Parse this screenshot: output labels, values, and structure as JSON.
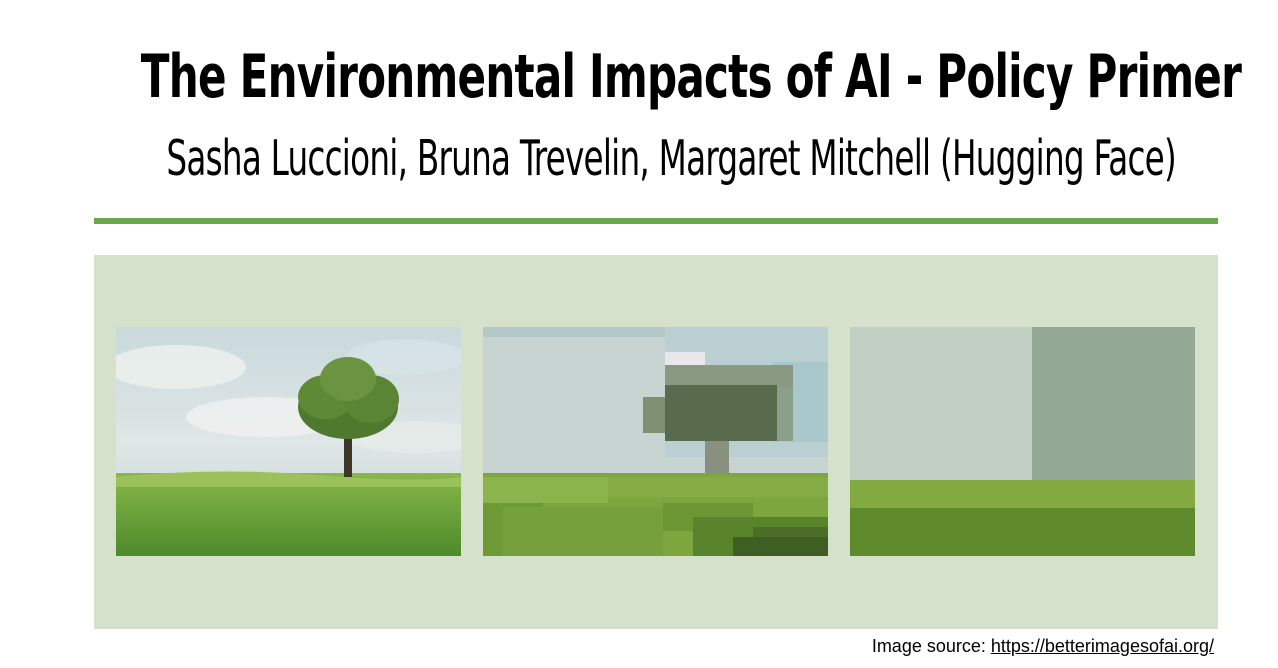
{
  "slide": {
    "title": "The Environmental Impacts of AI - Policy Primer",
    "authors": "Sasha Luccioni, Bruna Trevelin, Margaret Mitchell (Hugging Face)",
    "accent_color": "#6aa84f",
    "panel_color": "#d5e1ca"
  },
  "image": {
    "frames": [
      {
        "name": "tree-photo",
        "description_icon": "tree-in-field"
      },
      {
        "name": "tree-pixelated",
        "description_icon": "pixelated-tree"
      },
      {
        "name": "tree-abstract",
        "description_icon": "abstract-blocks"
      }
    ]
  },
  "caption": {
    "prefix": "Image source: ",
    "link_text": "https://betterimagesofai.org/"
  }
}
